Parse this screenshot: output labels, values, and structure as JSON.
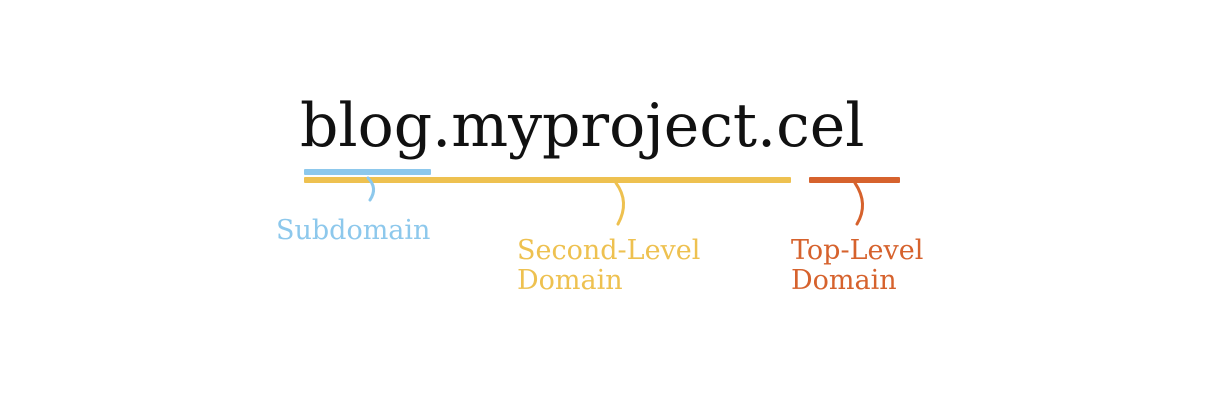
{
  "domain": {
    "full": "blog.myproject.cel"
  },
  "labels": {
    "subdomain": "Subdomain",
    "second_level": [
      "Second-Level",
      "Domain"
    ],
    "top_level": [
      "Top-Level",
      "Domain"
    ]
  },
  "colors": {
    "text": "#111111",
    "subdomain": "#8DC8EC",
    "second_level": "#EEC150",
    "top_level": "#D6622D"
  }
}
